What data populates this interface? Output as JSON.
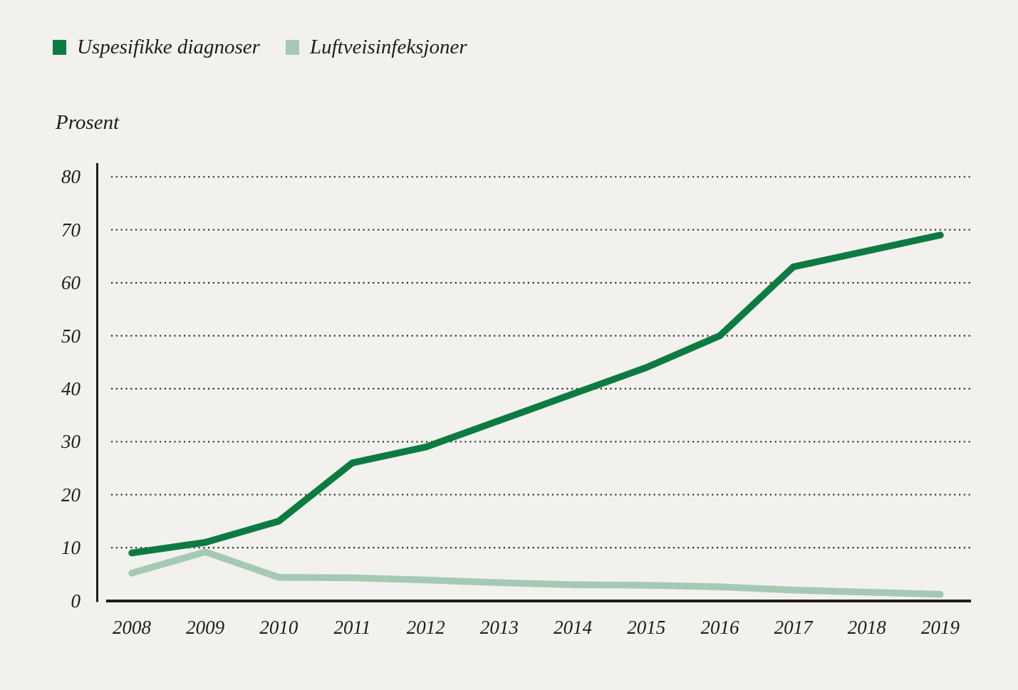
{
  "page": {
    "background_color": "#f2f1ee",
    "text_color": "#1d1d1b"
  },
  "legend": {
    "items": [
      {
        "label": "Uspesifikke diagnoser",
        "color": "#0d7b41"
      },
      {
        "label": "Luftveisinfeksjoner",
        "color": "#a6c9b3"
      }
    ]
  },
  "chart_data": {
    "type": "line",
    "title": "",
    "xlabel": "",
    "ylabel": "Prosent",
    "x": [
      2008,
      2009,
      2010,
      2011,
      2012,
      2013,
      2014,
      2015,
      2016,
      2017,
      2018,
      2019
    ],
    "series": [
      {
        "name": "Uspesifikke diagnoser",
        "color": "#0d7b41",
        "values": [
          9,
          11,
          15,
          26,
          29,
          34,
          39,
          44,
          50,
          63,
          66,
          69
        ]
      },
      {
        "name": "Luftveisinfeksjoner",
        "color": "#a6c9b3",
        "values": [
          5.2,
          9.2,
          4.4,
          4.3,
          3.9,
          3.4,
          3.0,
          2.9,
          2.6,
          2.0,
          1.6,
          1.2
        ]
      }
    ],
    "ylim": [
      0,
      80
    ],
    "yticks": [
      0,
      10,
      20,
      30,
      40,
      50,
      60,
      70,
      80
    ],
    "grid": "horizontal-dotted",
    "legend_position": "top-left",
    "axis_color": "#1d1d1b",
    "grid_color": "#33322f"
  }
}
